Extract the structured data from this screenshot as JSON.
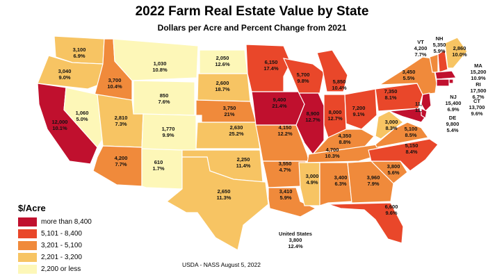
{
  "title": "2022 Farm Real Estate Value by State",
  "subtitle": "Dollars per Acre and Percent Change from 2021",
  "colors": {
    "c5": "#c0102e",
    "c4": "#e9472a",
    "c3": "#f08a3b",
    "c2": "#f7c463",
    "c1": "#fdf7b8"
  },
  "legend": {
    "title": "$/Acre",
    "items": [
      {
        "label": "more than 8,400",
        "cls": "c5"
      },
      {
        "label": "5,101 - 8,400",
        "cls": "c4"
      },
      {
        "label": "3,201 - 5,100",
        "cls": "c3"
      },
      {
        "label": "2,201 - 3,200",
        "cls": "c2"
      },
      {
        "label": "2,200 or less",
        "cls": "c1"
      }
    ]
  },
  "states": {
    "WA": {
      "value": "3,100",
      "change": "6.9%",
      "cls": "c2"
    },
    "OR": {
      "value": "3,040",
      "change": "9.0%",
      "cls": "c2"
    },
    "CA": {
      "value": "12,000",
      "change": "10.1%",
      "cls": "c5"
    },
    "ID": {
      "value": "3,700",
      "change": "10.4%",
      "cls": "c3"
    },
    "NV": {
      "value": "1,060",
      "change": "5.0%",
      "cls": "c1"
    },
    "MT": {
      "value": "1,030",
      "change": "10.8%",
      "cls": "c1"
    },
    "WY": {
      "value": "850",
      "change": "7.6%",
      "cls": "c1"
    },
    "UT": {
      "value": "2,810",
      "change": "7.3%",
      "cls": "c2"
    },
    "CO": {
      "value": "1,770",
      "change": "9.9%",
      "cls": "c1"
    },
    "AZ": {
      "value": "4,200",
      "change": "7.7%",
      "cls": "c3"
    },
    "NM": {
      "value": "610",
      "change": "1.7%",
      "cls": "c1"
    },
    "ND": {
      "value": "2,050",
      "change": "12.6%",
      "cls": "c1"
    },
    "SD": {
      "value": "2,600",
      "change": "18.7%",
      "cls": "c2"
    },
    "NE": {
      "value": "3,750",
      "change": "21%",
      "cls": "c3"
    },
    "KS": {
      "value": "2,630",
      "change": "25.2%",
      "cls": "c2"
    },
    "OK": {
      "value": "2,250",
      "change": "11.4%",
      "cls": "c2"
    },
    "TX": {
      "value": "2,650",
      "change": "11.3%",
      "cls": "c2"
    },
    "MN": {
      "value": "6,150",
      "change": "17.4%",
      "cls": "c4"
    },
    "IA": {
      "value": "9,400",
      "change": "21.4%",
      "cls": "c5"
    },
    "MO": {
      "value": "4,150",
      "change": "12.2%",
      "cls": "c3"
    },
    "AR": {
      "value": "3,550",
      "change": "4.7%",
      "cls": "c3"
    },
    "LA": {
      "value": "3,410",
      "change": "5.9%",
      "cls": "c3"
    },
    "WI": {
      "value": "5,700",
      "change": "9.8%",
      "cls": "c4"
    },
    "IL": {
      "value": "8,900",
      "change": "12.7%",
      "cls": "c5"
    },
    "MI": {
      "value": "5,850",
      "change": "10.4%",
      "cls": "c4"
    },
    "IN": {
      "value": "8,000",
      "change": "12.7%",
      "cls": "c4"
    },
    "OH": {
      "value": "7,200",
      "change": "9.1%",
      "cls": "c4"
    },
    "KY": {
      "value": "4,350",
      "change": "8.8%",
      "cls": "c3"
    },
    "TN": {
      "value": "4,700",
      "change": "10.3%",
      "cls": "c3"
    },
    "MS": {
      "value": "3,000",
      "change": "4.9%",
      "cls": "c2"
    },
    "AL": {
      "value": "3,400",
      "change": "6.3%",
      "cls": "c3"
    },
    "GA": {
      "value": "3,960",
      "change": "7.9%",
      "cls": "c3"
    },
    "FL": {
      "value": "6,600",
      "change": "9.6%",
      "cls": "c4"
    },
    "SC": {
      "value": "3,800",
      "change": "5.6%",
      "cls": "c3"
    },
    "NC": {
      "value": "5,150",
      "change": "8.4%",
      "cls": "c4"
    },
    "VA": {
      "value": "5,100",
      "change": "8.5%",
      "cls": "c3"
    },
    "WV": {
      "value": "3,000",
      "change": "8.3%",
      "cls": "c2"
    },
    "PA": {
      "value": "7,350",
      "change": "8.1%",
      "cls": "c4"
    },
    "NY": {
      "value": "3,450",
      "change": "5.5%",
      "cls": "c3"
    },
    "MD": {
      "value": "11,",
      "change": "11.",
      "cls": "c5"
    },
    "VT": {
      "value": "4,200",
      "change": "7.7%",
      "cls": "c3"
    },
    "NH": {
      "value": "5,350",
      "change": "5.9%",
      "cls": "c4"
    },
    "ME": {
      "value": "2,860",
      "change": "10.0%",
      "cls": "c2"
    },
    "MA": {
      "value": "15,200",
      "change": "10.9%",
      "cls": "c5"
    },
    "RI": {
      "value": "17,500",
      "change": "6.7%",
      "cls": "c5"
    },
    "CT": {
      "value": "13,700",
      "change": "9.6%",
      "cls": "c5"
    },
    "NJ": {
      "value": "15,400",
      "change": "6.9%",
      "cls": "c5"
    },
    "DE": {
      "value": "9,800",
      "change": "5.4%",
      "cls": "c5"
    }
  },
  "us": {
    "name": "United States",
    "value": "3,800",
    "change": "12.4%"
  },
  "source": "USDA - NASS August 5, 2022"
}
